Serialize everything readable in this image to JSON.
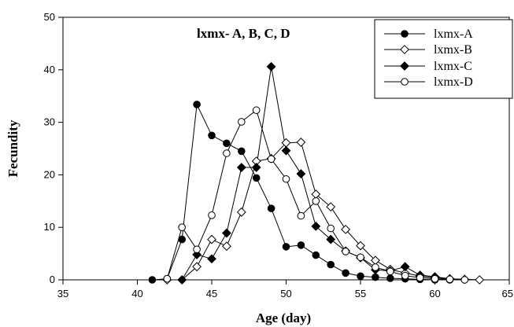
{
  "chart_data": {
    "type": "line",
    "title": "lxmx- A, B, C, D",
    "xlabel": "Age (day)",
    "ylabel": "Fecundity",
    "xlim": [
      35,
      65
    ],
    "ylim": [
      0,
      50
    ],
    "xticks": [
      35,
      40,
      45,
      50,
      55,
      60,
      65
    ],
    "yticks": [
      0,
      10,
      20,
      30,
      40,
      50
    ],
    "xtick_labels": [
      "35",
      "40",
      "45",
      "50",
      "55",
      "60",
      "65"
    ],
    "ytick_labels": [
      "0",
      "10",
      "20",
      "30",
      "40",
      "50"
    ],
    "legend_position": "top-right",
    "grid": false,
    "series": [
      {
        "name": "lxmx-A",
        "marker": "filled-circle",
        "x": [
          41,
          42,
          43,
          44,
          45,
          46,
          47,
          48,
          49,
          50,
          51,
          52,
          53,
          54,
          55,
          56,
          57,
          58,
          59,
          60,
          61
        ],
        "y": [
          0,
          0.2,
          7.7,
          33.4,
          27.5,
          26,
          24.5,
          19.4,
          13.6,
          6.3,
          6.6,
          4.7,
          2.9,
          1.3,
          0.7,
          0.5,
          0.3,
          0.2,
          0.1,
          0,
          0
        ]
      },
      {
        "name": "lxmx-B",
        "marker": "open-diamond",
        "x": [
          42,
          43,
          44,
          45,
          46,
          47,
          48,
          49,
          50,
          51,
          52,
          53,
          54,
          55,
          56,
          57,
          58,
          59,
          60,
          61,
          62,
          63
        ],
        "y": [
          0,
          0,
          2.5,
          7.7,
          6.4,
          12.9,
          22.6,
          23.1,
          26.1,
          26.2,
          16.3,
          13.9,
          9.6,
          6.5,
          3.7,
          2,
          1.3,
          0.7,
          0.4,
          0.2,
          0.1,
          0
        ]
      },
      {
        "name": "lxmx-C",
        "marker": "filled-diamond",
        "x": [
          43,
          44,
          45,
          46,
          47,
          48,
          49,
          50,
          51,
          52,
          53,
          54,
          55,
          56,
          57,
          58,
          59,
          60,
          61
        ],
        "y": [
          0,
          4.8,
          4,
          8.9,
          21.4,
          21.4,
          40.6,
          24.6,
          20.2,
          10.2,
          7.7,
          5.5,
          4.2,
          1.9,
          1.7,
          2.5,
          0.9,
          0.6,
          0.2
        ]
      },
      {
        "name": "lxmx-D",
        "marker": "open-circle",
        "x": [
          42,
          43,
          44,
          45,
          46,
          47,
          48,
          49,
          50,
          51,
          52,
          53,
          54,
          55,
          56,
          57,
          58,
          59,
          60,
          61,
          62
        ],
        "y": [
          0.2,
          10,
          5.8,
          12.3,
          24.1,
          30.1,
          32.3,
          23,
          19.2,
          12.2,
          15,
          9.8,
          5.4,
          4.3,
          2.4,
          1.6,
          0.8,
          0.4,
          0.2,
          0.1,
          0
        ]
      }
    ]
  }
}
